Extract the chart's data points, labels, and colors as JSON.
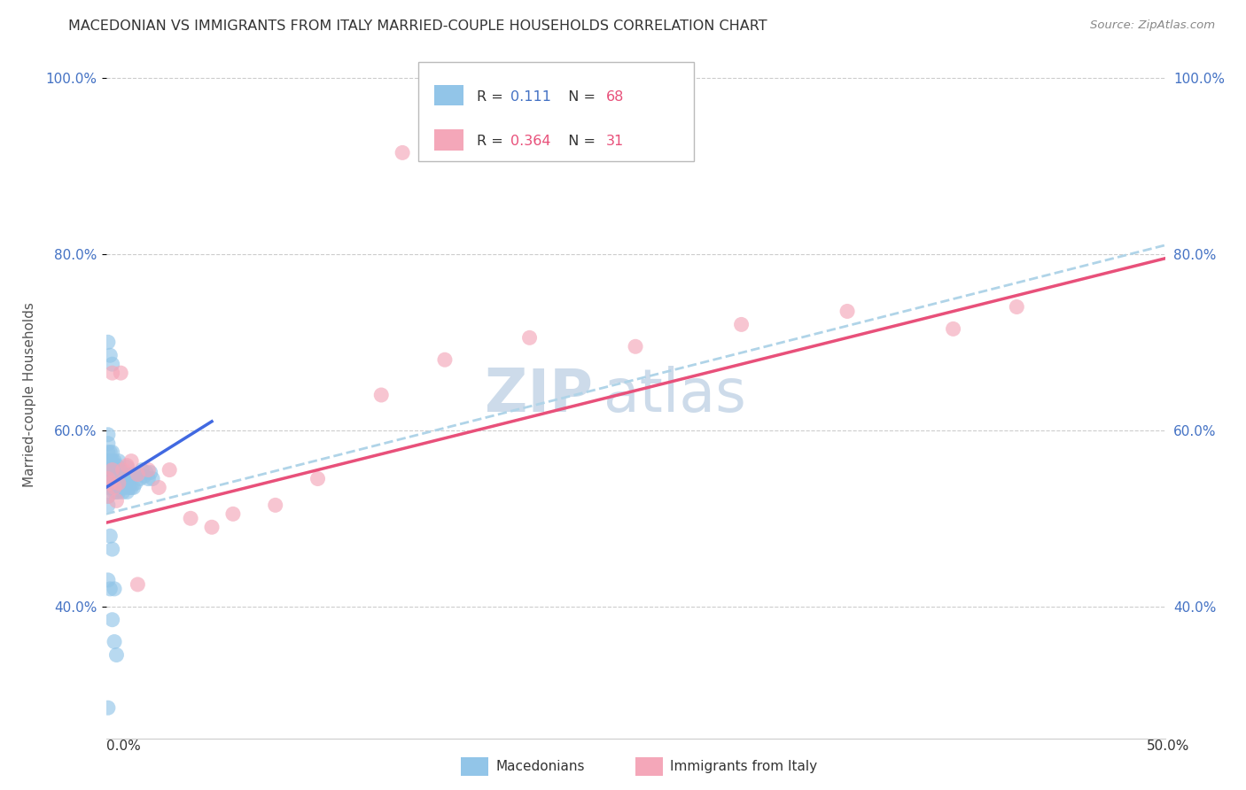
{
  "title": "MACEDONIAN VS IMMIGRANTS FROM ITALY MARRIED-COUPLE HOUSEHOLDS CORRELATION CHART",
  "source": "Source: ZipAtlas.com",
  "ylabel": "Married-couple Households",
  "color_macedonian": "#92C5E8",
  "color_italy": "#F4A7B9",
  "color_line_mac": "#4169E1",
  "color_line_italy": "#E8507A",
  "color_line_dashed": "#B0D4E8",
  "watermark_zip": "ZIP",
  "watermark_atlas": "atlas",
  "xlim": [
    0.0,
    0.5
  ],
  "ylim": [
    0.25,
    1.03
  ],
  "ytick_vals": [
    0.4,
    0.6,
    0.8,
    1.0
  ],
  "ytick_labels": [
    "40.0%",
    "60.0%",
    "80.0%",
    "100.0%"
  ],
  "xtick_bottom_left": "0.0%",
  "xtick_bottom_right": "50.0%",
  "legend_label1": "Macedonians",
  "legend_label2": "Immigrants from Italy",
  "legend_R1": "0.111",
  "legend_N1": "68",
  "legend_R2": "0.364",
  "legend_N2": "31",
  "mac_line_x": [
    0.0,
    0.05
  ],
  "mac_line_y": [
    0.535,
    0.61
  ],
  "italy_line_x": [
    0.0,
    0.5
  ],
  "italy_line_y": [
    0.495,
    0.795
  ],
  "dashed_line_x": [
    0.0,
    0.5
  ],
  "dashed_line_y": [
    0.505,
    0.81
  ],
  "mac_x": [
    0.001,
    0.001,
    0.001,
    0.001,
    0.001,
    0.001,
    0.001,
    0.001,
    0.001,
    0.002,
    0.002,
    0.002,
    0.002,
    0.002,
    0.003,
    0.003,
    0.003,
    0.003,
    0.003,
    0.004,
    0.004,
    0.004,
    0.004,
    0.005,
    0.005,
    0.005,
    0.005,
    0.006,
    0.006,
    0.006,
    0.006,
    0.007,
    0.007,
    0.007,
    0.008,
    0.008,
    0.008,
    0.009,
    0.009,
    0.01,
    0.01,
    0.01,
    0.011,
    0.011,
    0.012,
    0.012,
    0.013,
    0.014,
    0.015,
    0.016,
    0.017,
    0.018,
    0.019,
    0.02,
    0.021,
    0.022,
    0.001,
    0.002,
    0.003,
    0.001,
    0.002,
    0.003,
    0.004,
    0.005,
    0.002,
    0.003,
    0.004,
    0.001
  ],
  "mac_y": [
    0.535,
    0.545,
    0.555,
    0.565,
    0.575,
    0.585,
    0.595,
    0.515,
    0.525,
    0.535,
    0.545,
    0.555,
    0.565,
    0.575,
    0.535,
    0.545,
    0.555,
    0.565,
    0.575,
    0.53,
    0.545,
    0.555,
    0.565,
    0.53,
    0.54,
    0.55,
    0.56,
    0.53,
    0.54,
    0.555,
    0.565,
    0.535,
    0.545,
    0.555,
    0.53,
    0.54,
    0.55,
    0.535,
    0.545,
    0.53,
    0.542,
    0.558,
    0.535,
    0.548,
    0.535,
    0.55,
    0.535,
    0.54,
    0.55,
    0.545,
    0.555,
    0.548,
    0.552,
    0.545,
    0.552,
    0.545,
    0.7,
    0.685,
    0.675,
    0.43,
    0.42,
    0.385,
    0.36,
    0.345,
    0.48,
    0.465,
    0.42,
    0.285
  ],
  "italy_x": [
    0.001,
    0.001,
    0.002,
    0.003,
    0.004,
    0.005,
    0.006,
    0.008,
    0.01,
    0.012,
    0.015,
    0.02,
    0.025,
    0.03,
    0.04,
    0.05,
    0.06,
    0.08,
    0.1,
    0.13,
    0.16,
    0.2,
    0.25,
    0.3,
    0.35,
    0.4,
    0.43,
    0.003,
    0.007,
    0.015,
    0.14
  ],
  "italy_y": [
    0.545,
    0.525,
    0.54,
    0.555,
    0.535,
    0.52,
    0.54,
    0.555,
    0.56,
    0.565,
    0.55,
    0.555,
    0.535,
    0.555,
    0.5,
    0.49,
    0.505,
    0.515,
    0.545,
    0.64,
    0.68,
    0.705,
    0.695,
    0.72,
    0.735,
    0.715,
    0.74,
    0.665,
    0.665,
    0.425,
    0.915
  ]
}
